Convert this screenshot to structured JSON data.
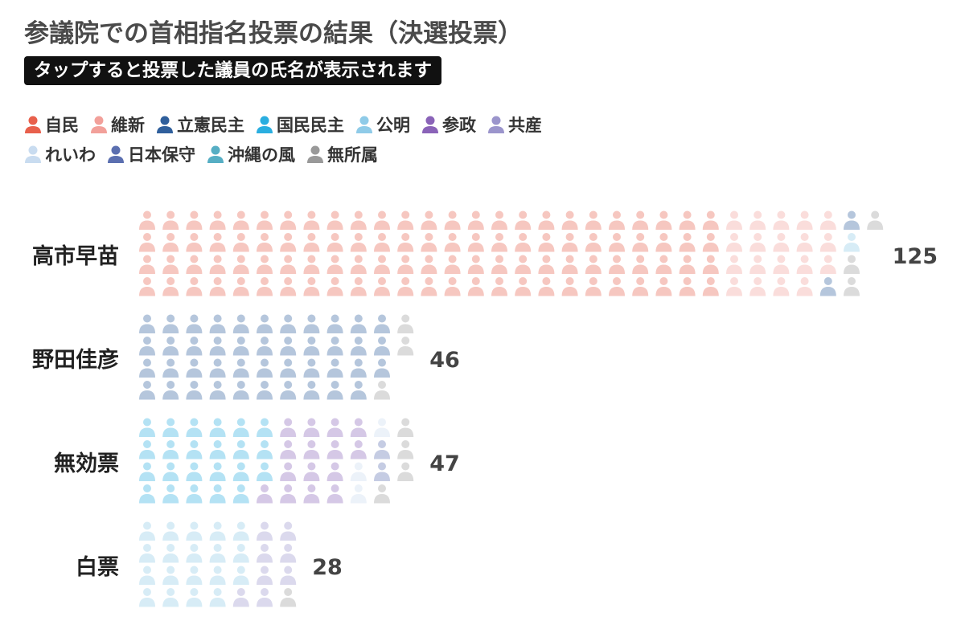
{
  "title": "参議院での首相指名投票の結果（決選投票）",
  "subtitle": "タップすると投票した議員の氏名が表示されます",
  "parties": [
    {
      "key": "jimin",
      "label": "自民",
      "color": "#e8604c"
    },
    {
      "key": "ishin",
      "label": "維新",
      "color": "#f2a09a"
    },
    {
      "key": "rikken",
      "label": "立憲民主",
      "color": "#2f5f9c"
    },
    {
      "key": "kokumin",
      "label": "国民民主",
      "color": "#2aaee0"
    },
    {
      "key": "komei",
      "label": "公明",
      "color": "#8fcbe8"
    },
    {
      "key": "sansei",
      "label": "参政",
      "color": "#8a63b8"
    },
    {
      "key": "kyosan",
      "label": "共産",
      "color": "#9b95cc"
    },
    {
      "key": "reiwa",
      "label": "れいわ",
      "color": "#c9dcf0"
    },
    {
      "key": "nippon_hoshu",
      "label": "日本保守",
      "color": "#5b6fb0"
    },
    {
      "key": "okinawa",
      "label": "沖縄の風",
      "color": "#56aec4"
    },
    {
      "key": "mushozoku",
      "label": "無所属",
      "color": "#999999"
    }
  ],
  "chart_data": {
    "type": "waffle",
    "title": "参議院での首相指名投票の結果（決選投票）",
    "categories": [
      "高市早苗",
      "野田佳彦",
      "無効票",
      "白票"
    ],
    "values": [
      125,
      46,
      47,
      28
    ],
    "breakdown": [
      {
        "jimin": 100,
        "ishin": 19,
        "rikken": 2,
        "komei": 1,
        "mushozoku": 3
      },
      {
        "rikken": 43,
        "mushozoku": 3
      },
      {
        "kokumin": 23,
        "sansei": 15,
        "nippon_hoshu": 2,
        "reiwa": 3,
        "mushozoku": 4
      },
      {
        "komei": 19,
        "kyosan": 8,
        "mushozoku": 1
      }
    ]
  }
}
